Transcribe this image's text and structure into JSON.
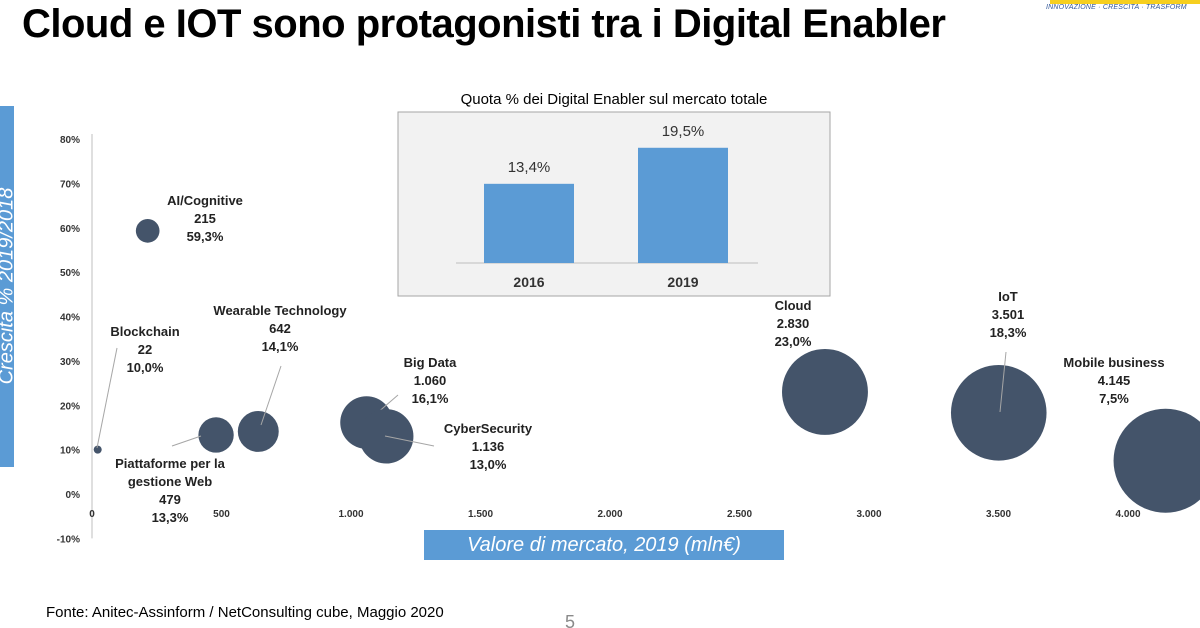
{
  "title": "Cloud e IOT sono protagonisti tra i Digital Enabler",
  "logo": {
    "tagline": "INNOVAZIONE · CRESCITA · TRASFORM"
  },
  "y_axis_label": "Crescita % 2019/2018",
  "x_axis_label": "Valore di mercato, 2019 (mln€)",
  "source": "Fonte: Anitec-Assinform / NetConsulting cube, Maggio  2020",
  "page_number": "5",
  "colors": {
    "bubble": "#44546a",
    "bar": "#5b9bd5",
    "axis_label_box": "#5b9bd5"
  },
  "chart_data": [
    {
      "type": "scatter",
      "xlim": [
        0,
        4150
      ],
      "ylim": [
        -10,
        80
      ],
      "x_ticks": [
        "0",
        "500",
        "1.000",
        "1.500",
        "2.000",
        "2.500",
        "3.000",
        "3.500",
        "4.000"
      ],
      "y_ticks": [
        "80%",
        "70%",
        "60%",
        "50%",
        "40%",
        "30%",
        "20%",
        "10%",
        "0%",
        "-10%"
      ],
      "grid": false,
      "points": [
        {
          "name": "AI/Cognitive",
          "x": 215,
          "y": 59.3,
          "value_label": "215",
          "growth_label": "59,3%"
        },
        {
          "name": "Blockchain",
          "x": 22,
          "y": 10.0,
          "value_label": "22",
          "growth_label": "10,0%"
        },
        {
          "name": "Wearable Technology",
          "x": 642,
          "y": 14.1,
          "value_label": "642",
          "growth_label": "14,1%"
        },
        {
          "name": "Piattaforme per la gestione Web",
          "x": 479,
          "y": 13.3,
          "value_label": "479",
          "growth_label": "13,3%"
        },
        {
          "name": "Big Data",
          "x": 1060,
          "y": 16.1,
          "value_label": "1.060",
          "growth_label": "16,1%"
        },
        {
          "name": "CyberSecurity",
          "x": 1136,
          "y": 13.0,
          "value_label": "1.136",
          "growth_label": "13,0%"
        },
        {
          "name": "Cloud",
          "x": 2830,
          "y": 23.0,
          "value_label": "2.830",
          "growth_label": "23,0%"
        },
        {
          "name": "IoT",
          "x": 3501,
          "y": 18.3,
          "value_label": "3.501",
          "growth_label": "18,3%"
        },
        {
          "name": "Mobile business",
          "x": 4145,
          "y": 7.5,
          "value_label": "4.145",
          "growth_label": "7,5%"
        }
      ]
    },
    {
      "type": "bar",
      "title": "Quota % dei Digital Enabler sul mercato totale",
      "categories": [
        "2016",
        "2019"
      ],
      "values": [
        13.4,
        19.5
      ],
      "value_labels": [
        "13,4%",
        "19,5%"
      ],
      "ylim": [
        0,
        22
      ]
    }
  ]
}
